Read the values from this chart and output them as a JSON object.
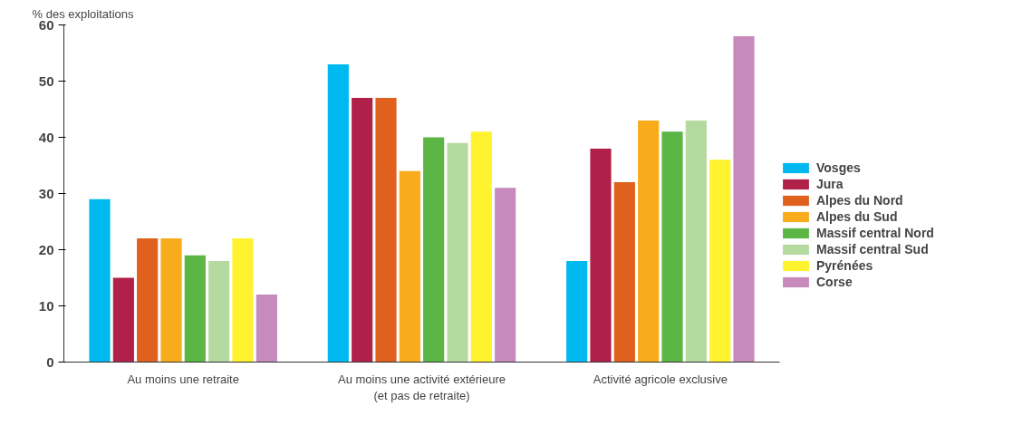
{
  "chart_data": {
    "type": "bar",
    "ylabel": "% des exploitations",
    "categories": [
      "Au moins une retraite",
      "Au moins une activité extérieure\n(et pas de retraite)",
      "Activité agricole exclusive"
    ],
    "series": [
      {
        "name": "Vosges",
        "color": "#00b9f0",
        "values": [
          29,
          53,
          18
        ]
      },
      {
        "name": "Jura",
        "color": "#b0214a",
        "values": [
          15,
          47,
          38
        ]
      },
      {
        "name": "Alpes du Nord",
        "color": "#e0601e",
        "values": [
          22,
          47,
          32
        ]
      },
      {
        "name": "Alpes du Sud",
        "color": "#f8ac1c",
        "values": [
          22,
          34,
          43
        ]
      },
      {
        "name": "Massif central Nord",
        "color": "#5cb646",
        "values": [
          19,
          40,
          41
        ]
      },
      {
        "name": "Massif central Sud",
        "color": "#b5daa0",
        "values": [
          18,
          39,
          43
        ]
      },
      {
        "name": "Pyrénées",
        "color": "#fff22e",
        "values": [
          22,
          41,
          36
        ]
      },
      {
        "name": "Corse",
        "color": "#c78abd",
        "values": [
          12,
          31,
          58
        ]
      }
    ],
    "ylim": [
      0,
      60
    ],
    "yticks": [
      0,
      10,
      20,
      30,
      40,
      50,
      60
    ],
    "grid": false,
    "legend": "right"
  }
}
